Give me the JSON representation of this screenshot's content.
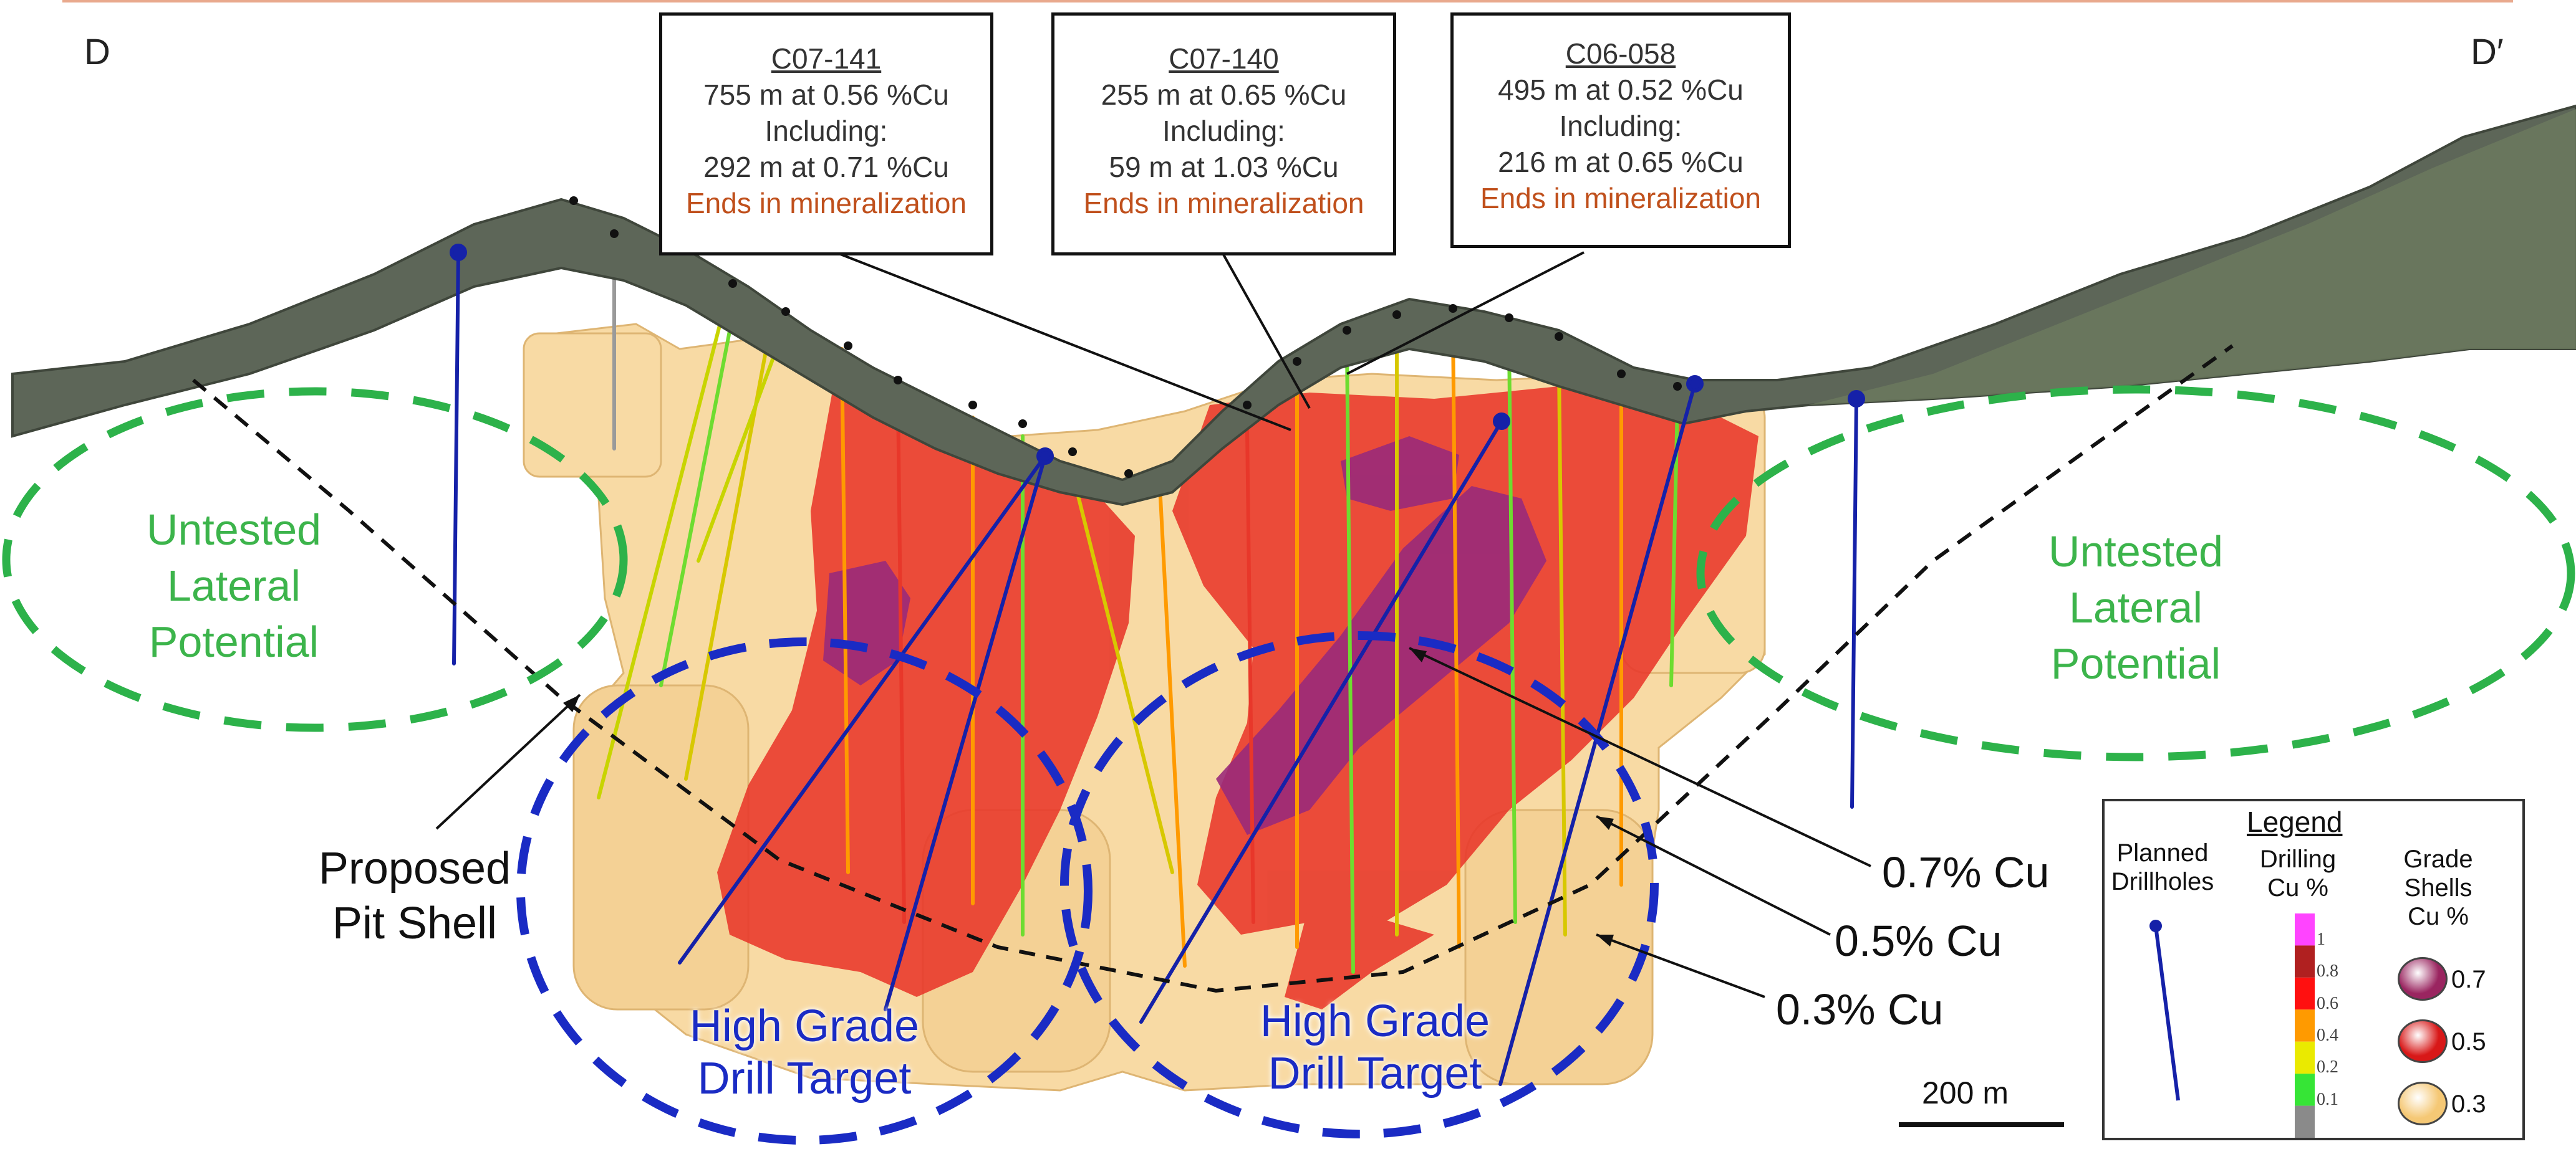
{
  "section": {
    "left_label": "D",
    "right_label": "D′"
  },
  "callouts": [
    {
      "hole": "C07-141",
      "line1": "755 m at 0.56 %Cu",
      "line2": "Including:",
      "line3": "292 m at 0.71 %Cu",
      "note": "Ends in mineralization"
    },
    {
      "hole": "C07-140",
      "line1": "255 m at 0.65 %Cu",
      "line2": "Including:",
      "line3": "59 m at 1.03 %Cu",
      "note": "Ends in mineralization"
    },
    {
      "hole": "C06-058",
      "line1": "495 m at 0.52 %Cu",
      "line2": "Including:",
      "line3": "216 m at 0.65 %Cu",
      "note": "Ends in mineralization"
    }
  ],
  "untested": {
    "left": [
      "Untested",
      "Lateral",
      "Potential"
    ],
    "right": [
      "Untested",
      "Lateral",
      "Potential"
    ]
  },
  "pit_shell": [
    "Proposed",
    "Pit Shell"
  ],
  "targets": {
    "left": [
      "High Grade",
      "Drill Target"
    ],
    "right": [
      "High Grade",
      "Drill Target"
    ]
  },
  "grade_labels": [
    "0.7% Cu",
    "0.5% Cu",
    "0.3% Cu"
  ],
  "scale_bar": {
    "label": "200 m"
  },
  "legend": {
    "title": "Legend",
    "planned": [
      "Planned",
      "Drillholes"
    ],
    "drilling": [
      "Drilling",
      "Cu %"
    ],
    "shells": [
      "Grade",
      "Shells",
      "Cu %"
    ],
    "drilling_ticks": [
      "1",
      "0.8",
      "0.6",
      "0.4",
      "0.2",
      "0.1"
    ],
    "drilling_colors": [
      "#ff44ff",
      "#b02020",
      "#ff1010",
      "#ff9a00",
      "#eaea00",
      "#36e536",
      "#8a8a8a"
    ],
    "shell_values": [
      "0.7",
      "0.5",
      "0.3"
    ],
    "shell_colors": [
      "#9a2560",
      "#d81818",
      "#f5c875"
    ]
  },
  "colors": {
    "accent_line": "#e9a98d",
    "planned_hole": "#1521a8",
    "target_circle": "#1a2bc4",
    "untested_circle": "#2db24a",
    "callout_note": "#c0501c",
    "shell_03": "#f7d495",
    "shell_05": "#e8372a",
    "shell_07": "#9a2a7a",
    "topography": "#5d6658"
  }
}
